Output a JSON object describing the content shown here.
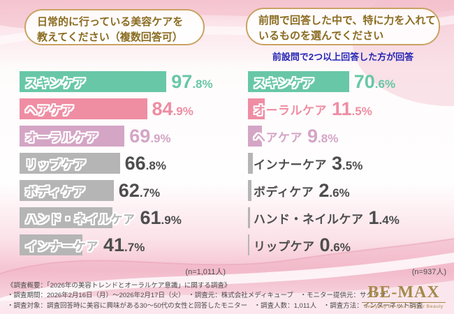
{
  "colors": {
    "rank_colors": [
      "#68c7a7",
      "#ef8da3",
      "#d4a5c5"
    ],
    "bar_gray": "#b5b5b5",
    "text_gray": "#4d4d4d",
    "note_blue": "#2626b4",
    "header_brown": "#8a6c20",
    "header_border": "#c9a263",
    "logo_gold": "#a5894b"
  },
  "chart_data": [
    {
      "type": "bar",
      "orientation": "horizontal",
      "title": "日常的に行っている美容ケアを教えてください（複数回答可）",
      "title_lines": [
        "日常的に行っている美容ケアを",
        "教えてください（複数回答可）"
      ],
      "categories": [
        "スキンケア",
        "ヘアケア",
        "オーラルケア",
        "リップケア",
        "ボディケア",
        "ハンド・ネイルケア",
        "インナーケア"
      ],
      "values": [
        97.8,
        84.9,
        69.9,
        66.8,
        62.7,
        61.9,
        41.7
      ],
      "unit": "%",
      "xlim": [
        0,
        100
      ],
      "grid": false,
      "legend": false,
      "n_label": "(n=1,011人)"
    },
    {
      "type": "bar",
      "orientation": "horizontal",
      "title": "前問で回答した中で、特に力を入れているものを選んでください",
      "title_lines": [
        "前問で回答した中で、特に力を入れて",
        "いるものを選んでください"
      ],
      "note": "前設問で2つ以上回答した方が回答",
      "categories": [
        "スキンケア",
        "オーラルケア",
        "ヘアケア",
        "インナーケア",
        "ボディケア",
        "ハンド・ネイルケア",
        "リップケア"
      ],
      "values": [
        70.6,
        11.5,
        9.8,
        3.5,
        2.6,
        1.4,
        0.6
      ],
      "unit": "%",
      "xlim": [
        0,
        100
      ],
      "grid": false,
      "legend": false,
      "n_label": "(n=937人)"
    }
  ],
  "footer": {
    "lines": [
      "《調査概要：「2026年の美容トレンドとオーラルケア意識」に関する調査》",
      "・調査期間：2026年2月16日（月）～2026年2月17日（火）　・調査元：株式会社メディキューブ　・モニター提供元：サクリサ",
      "・調査対象：調査回答時に美容に興味がある30～50代の女性と回答したモニター　・調査人数：1,011人　・調査方法：インターネット調査"
    ]
  },
  "logo": {
    "name": "BE-MAX",
    "tagline": "Everyday Be max in your Beauty"
  }
}
